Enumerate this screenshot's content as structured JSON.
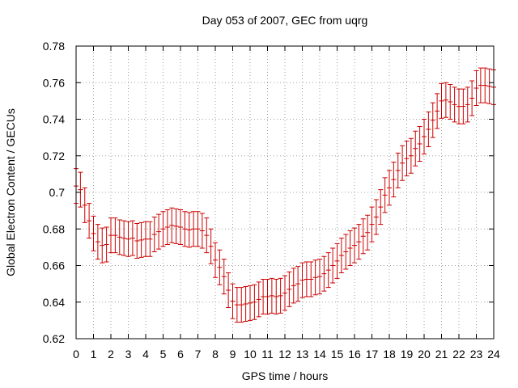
{
  "chart_data": {
    "type": "scatter",
    "title": "Day 053 of 2007, GEC from uqrg",
    "xlabel": "GPS time / hours",
    "ylabel": "Global Electron Content / GECUs",
    "xlim": [
      0,
      24
    ],
    "ylim": [
      0.62,
      0.78
    ],
    "x_ticks": [
      "0",
      "1",
      "2",
      "3",
      "4",
      "5",
      "6",
      "7",
      "8",
      "9",
      "10",
      "11",
      "12",
      "13",
      "14",
      "15",
      "16",
      "17",
      "18",
      "19",
      "20",
      "21",
      "22",
      "23",
      "24"
    ],
    "y_ticks": [
      "0.62",
      "0.64",
      "0.66",
      "0.68",
      "0.7",
      "0.72",
      "0.74",
      "0.76",
      "0.78"
    ],
    "grid": true,
    "legend": "none",
    "color": "#cc0000",
    "series": [
      {
        "x": [
          0.0,
          0.25,
          0.5,
          0.75,
          1.0,
          1.25,
          1.5,
          1.75,
          2.0,
          2.25,
          2.5,
          2.75,
          3.0,
          3.25,
          3.5,
          3.75,
          4.0,
          4.25,
          4.5,
          4.75,
          5.0,
          5.25,
          5.5,
          5.75,
          6.0,
          6.25,
          6.5,
          6.75,
          7.0,
          7.25,
          7.5,
          7.75,
          8.0,
          8.25,
          8.5,
          8.75,
          9.0,
          9.25,
          9.5,
          9.75,
          10.0,
          10.25,
          10.5,
          10.75,
          11.0,
          11.25,
          11.5,
          11.75,
          12.0,
          12.25,
          12.5,
          12.75,
          13.0,
          13.25,
          13.5,
          13.75,
          14.0,
          14.25,
          14.5,
          14.75,
          15.0,
          15.25,
          15.5,
          15.75,
          16.0,
          16.25,
          16.5,
          16.75,
          17.0,
          17.25,
          17.5,
          17.75,
          18.0,
          18.25,
          18.5,
          18.75,
          19.0,
          19.25,
          19.5,
          19.75,
          20.0,
          20.25,
          20.5,
          20.75,
          21.0,
          21.25,
          21.5,
          21.75,
          22.0,
          22.25,
          22.5,
          22.75,
          23.0,
          23.25,
          23.5,
          23.75,
          24.0
        ],
        "y": [
          0.7035,
          0.7015,
          0.693,
          0.6845,
          0.6775,
          0.673,
          0.671,
          0.6715,
          0.6765,
          0.6765,
          0.6755,
          0.675,
          0.6745,
          0.675,
          0.6735,
          0.674,
          0.6745,
          0.6745,
          0.677,
          0.6785,
          0.68,
          0.681,
          0.682,
          0.6815,
          0.681,
          0.68,
          0.6795,
          0.68,
          0.68,
          0.679,
          0.6765,
          0.6705,
          0.663,
          0.659,
          0.654,
          0.6465,
          0.6405,
          0.6385,
          0.6385,
          0.639,
          0.6395,
          0.64,
          0.6415,
          0.643,
          0.643,
          0.6435,
          0.643,
          0.6435,
          0.645,
          0.647,
          0.649,
          0.65,
          0.652,
          0.6525,
          0.6525,
          0.6535,
          0.654,
          0.6555,
          0.6575,
          0.66,
          0.6625,
          0.6655,
          0.6675,
          0.6695,
          0.671,
          0.673,
          0.676,
          0.678,
          0.6825,
          0.6865,
          0.692,
          0.6985,
          0.7025,
          0.707,
          0.712,
          0.716,
          0.7185,
          0.72,
          0.724,
          0.7265,
          0.7305,
          0.7345,
          0.7395,
          0.7445,
          0.75,
          0.7505,
          0.7495,
          0.748,
          0.747,
          0.747,
          0.748,
          0.7515,
          0.757,
          0.7585,
          0.7585,
          0.758,
          0.7575
        ],
        "err": 0.0095
      }
    ]
  }
}
